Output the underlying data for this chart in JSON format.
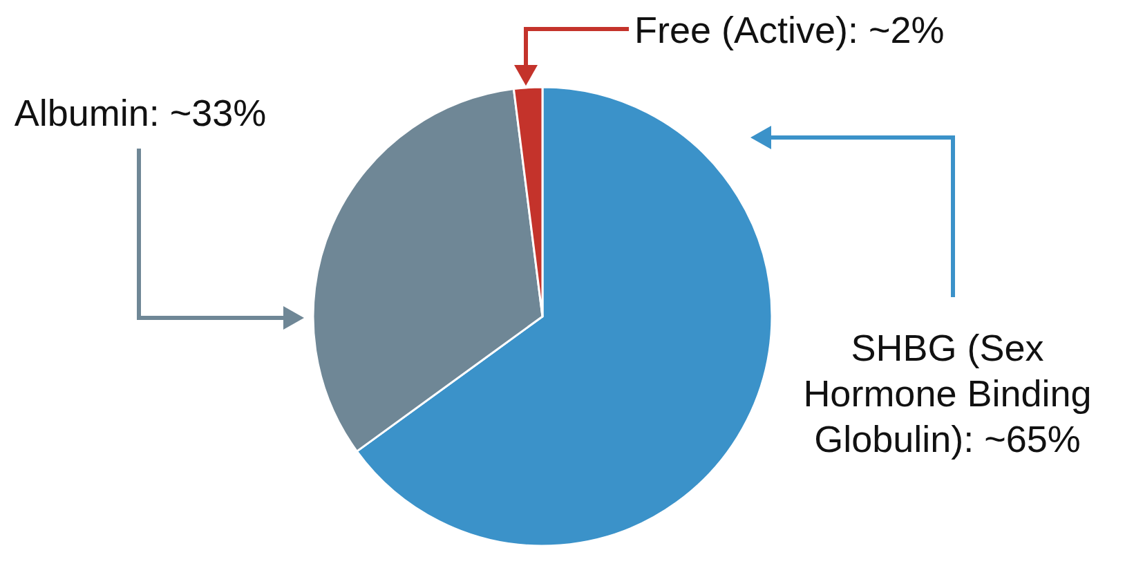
{
  "chart_data": {
    "type": "pie",
    "categories": [
      "SHBG (Sex Hormone Binding Globulin)",
      "Albumin",
      "Free (Active)"
    ],
    "values": [
      65,
      33,
      2
    ],
    "value_labels": [
      "~65%",
      "~33%",
      "~2%"
    ],
    "colors": [
      "#3b92c9",
      "#6f8796",
      "#c4332b"
    ]
  }
}
